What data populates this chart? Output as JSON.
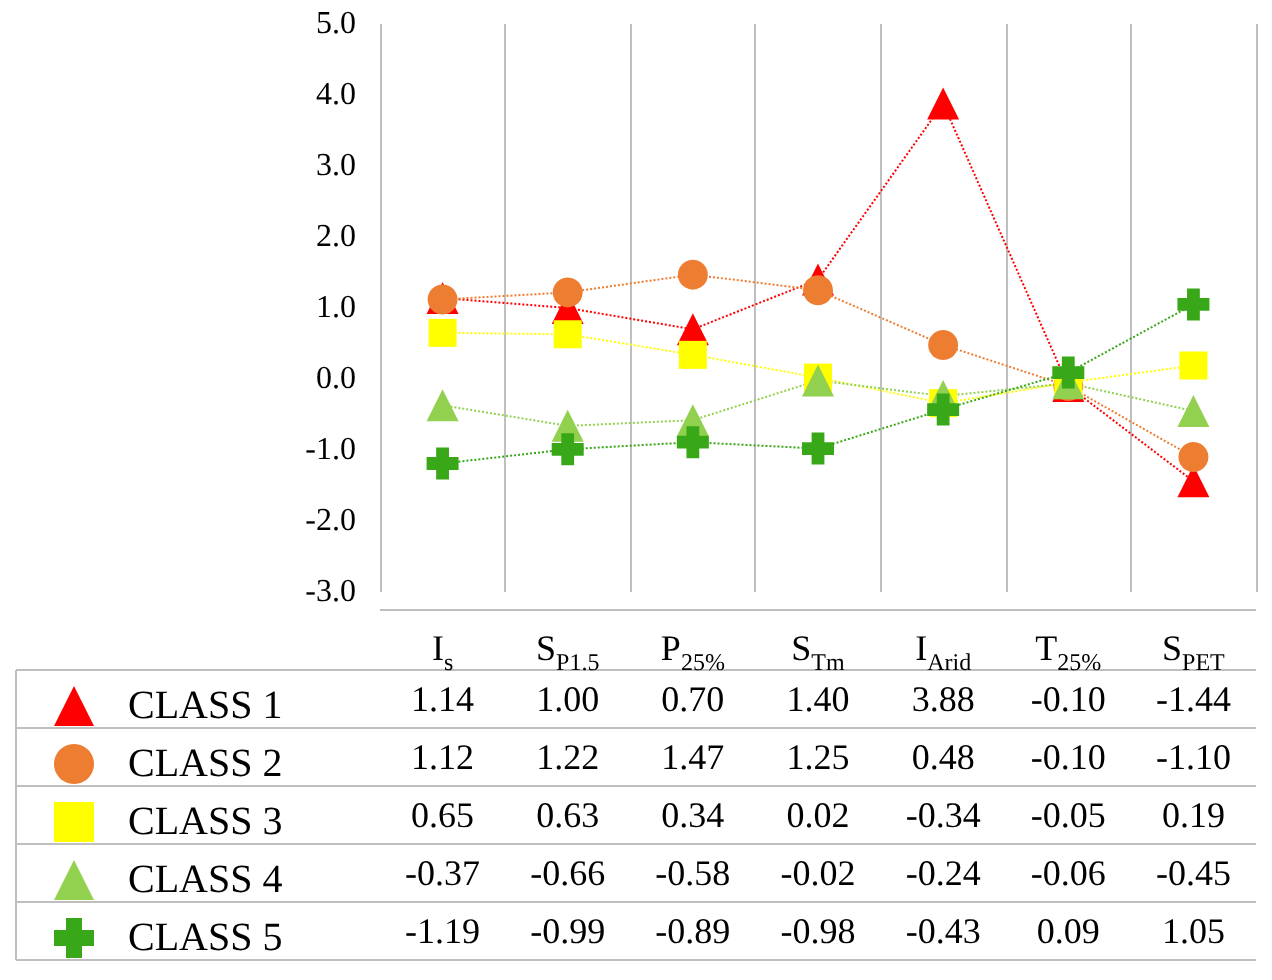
{
  "chart_data": {
    "type": "line",
    "categories": [
      "I$_{s}$",
      "S$_{P1.5}$",
      "P$_{25%}$",
      "S$_{Tm}$",
      "I$_{Arid}$",
      "T$_{25%}$",
      "S$_{PET}$"
    ],
    "series": [
      {
        "name": "CLASS 1",
        "color": "#ff0000",
        "marker": "triangle",
        "values": [
          1.14,
          1.0,
          0.7,
          1.4,
          3.88,
          -0.1,
          -1.44
        ],
        "value_labels": [
          "1.14",
          "1.00",
          "0.70",
          "1.40",
          "3.88",
          "-0.10",
          "-1.44"
        ]
      },
      {
        "name": "CLASS 2",
        "color": "#ed7d31",
        "marker": "circle",
        "values": [
          1.12,
          1.22,
          1.47,
          1.25,
          0.48,
          -0.1,
          -1.1
        ],
        "value_labels": [
          "1.12",
          "1.22",
          "1.47",
          "1.25",
          "0.48",
          "-0.10",
          "-1.10"
        ]
      },
      {
        "name": "CLASS 3",
        "color": "#ffff00",
        "marker": "square",
        "values": [
          0.65,
          0.63,
          0.34,
          0.02,
          -0.34,
          -0.05,
          0.19
        ],
        "value_labels": [
          "0.65",
          "0.63",
          "0.34",
          "0.02",
          "-0.34",
          "-0.05",
          "0.19"
        ]
      },
      {
        "name": "CLASS 4",
        "color": "#92d050",
        "marker": "triangle",
        "values": [
          -0.37,
          -0.66,
          -0.58,
          -0.02,
          -0.24,
          -0.06,
          -0.45
        ],
        "value_labels": [
          "-0.37",
          "-0.66",
          "-0.58",
          "-0.02",
          "-0.24",
          "-0.06",
          "-0.45"
        ]
      },
      {
        "name": "CLASS 5",
        "color": "#38a818",
        "marker": "cross",
        "values": [
          -1.19,
          -0.99,
          -0.89,
          -0.98,
          -0.43,
          0.09,
          1.05
        ],
        "value_labels": [
          "-1.19",
          "-0.99",
          "-0.89",
          "-0.98",
          "-0.43",
          "0.09",
          "1.05"
        ]
      }
    ],
    "ylim": [
      -3,
      5
    ],
    "yticks": [
      {
        "value": -3,
        "label": "-3.0"
      },
      {
        "value": -2,
        "label": "-2.0"
      },
      {
        "value": -1,
        "label": "-1.0"
      },
      {
        "value": 0,
        "label": "0.0"
      },
      {
        "value": 1,
        "label": "1.0"
      },
      {
        "value": 2,
        "label": "2.0"
      },
      {
        "value": 3,
        "label": "3.0"
      },
      {
        "value": 4,
        "label": "4.0"
      },
      {
        "value": 5,
        "label": "5.0"
      }
    ],
    "grid": "x",
    "legend": "bottom left",
    "line_style": "dotted"
  }
}
